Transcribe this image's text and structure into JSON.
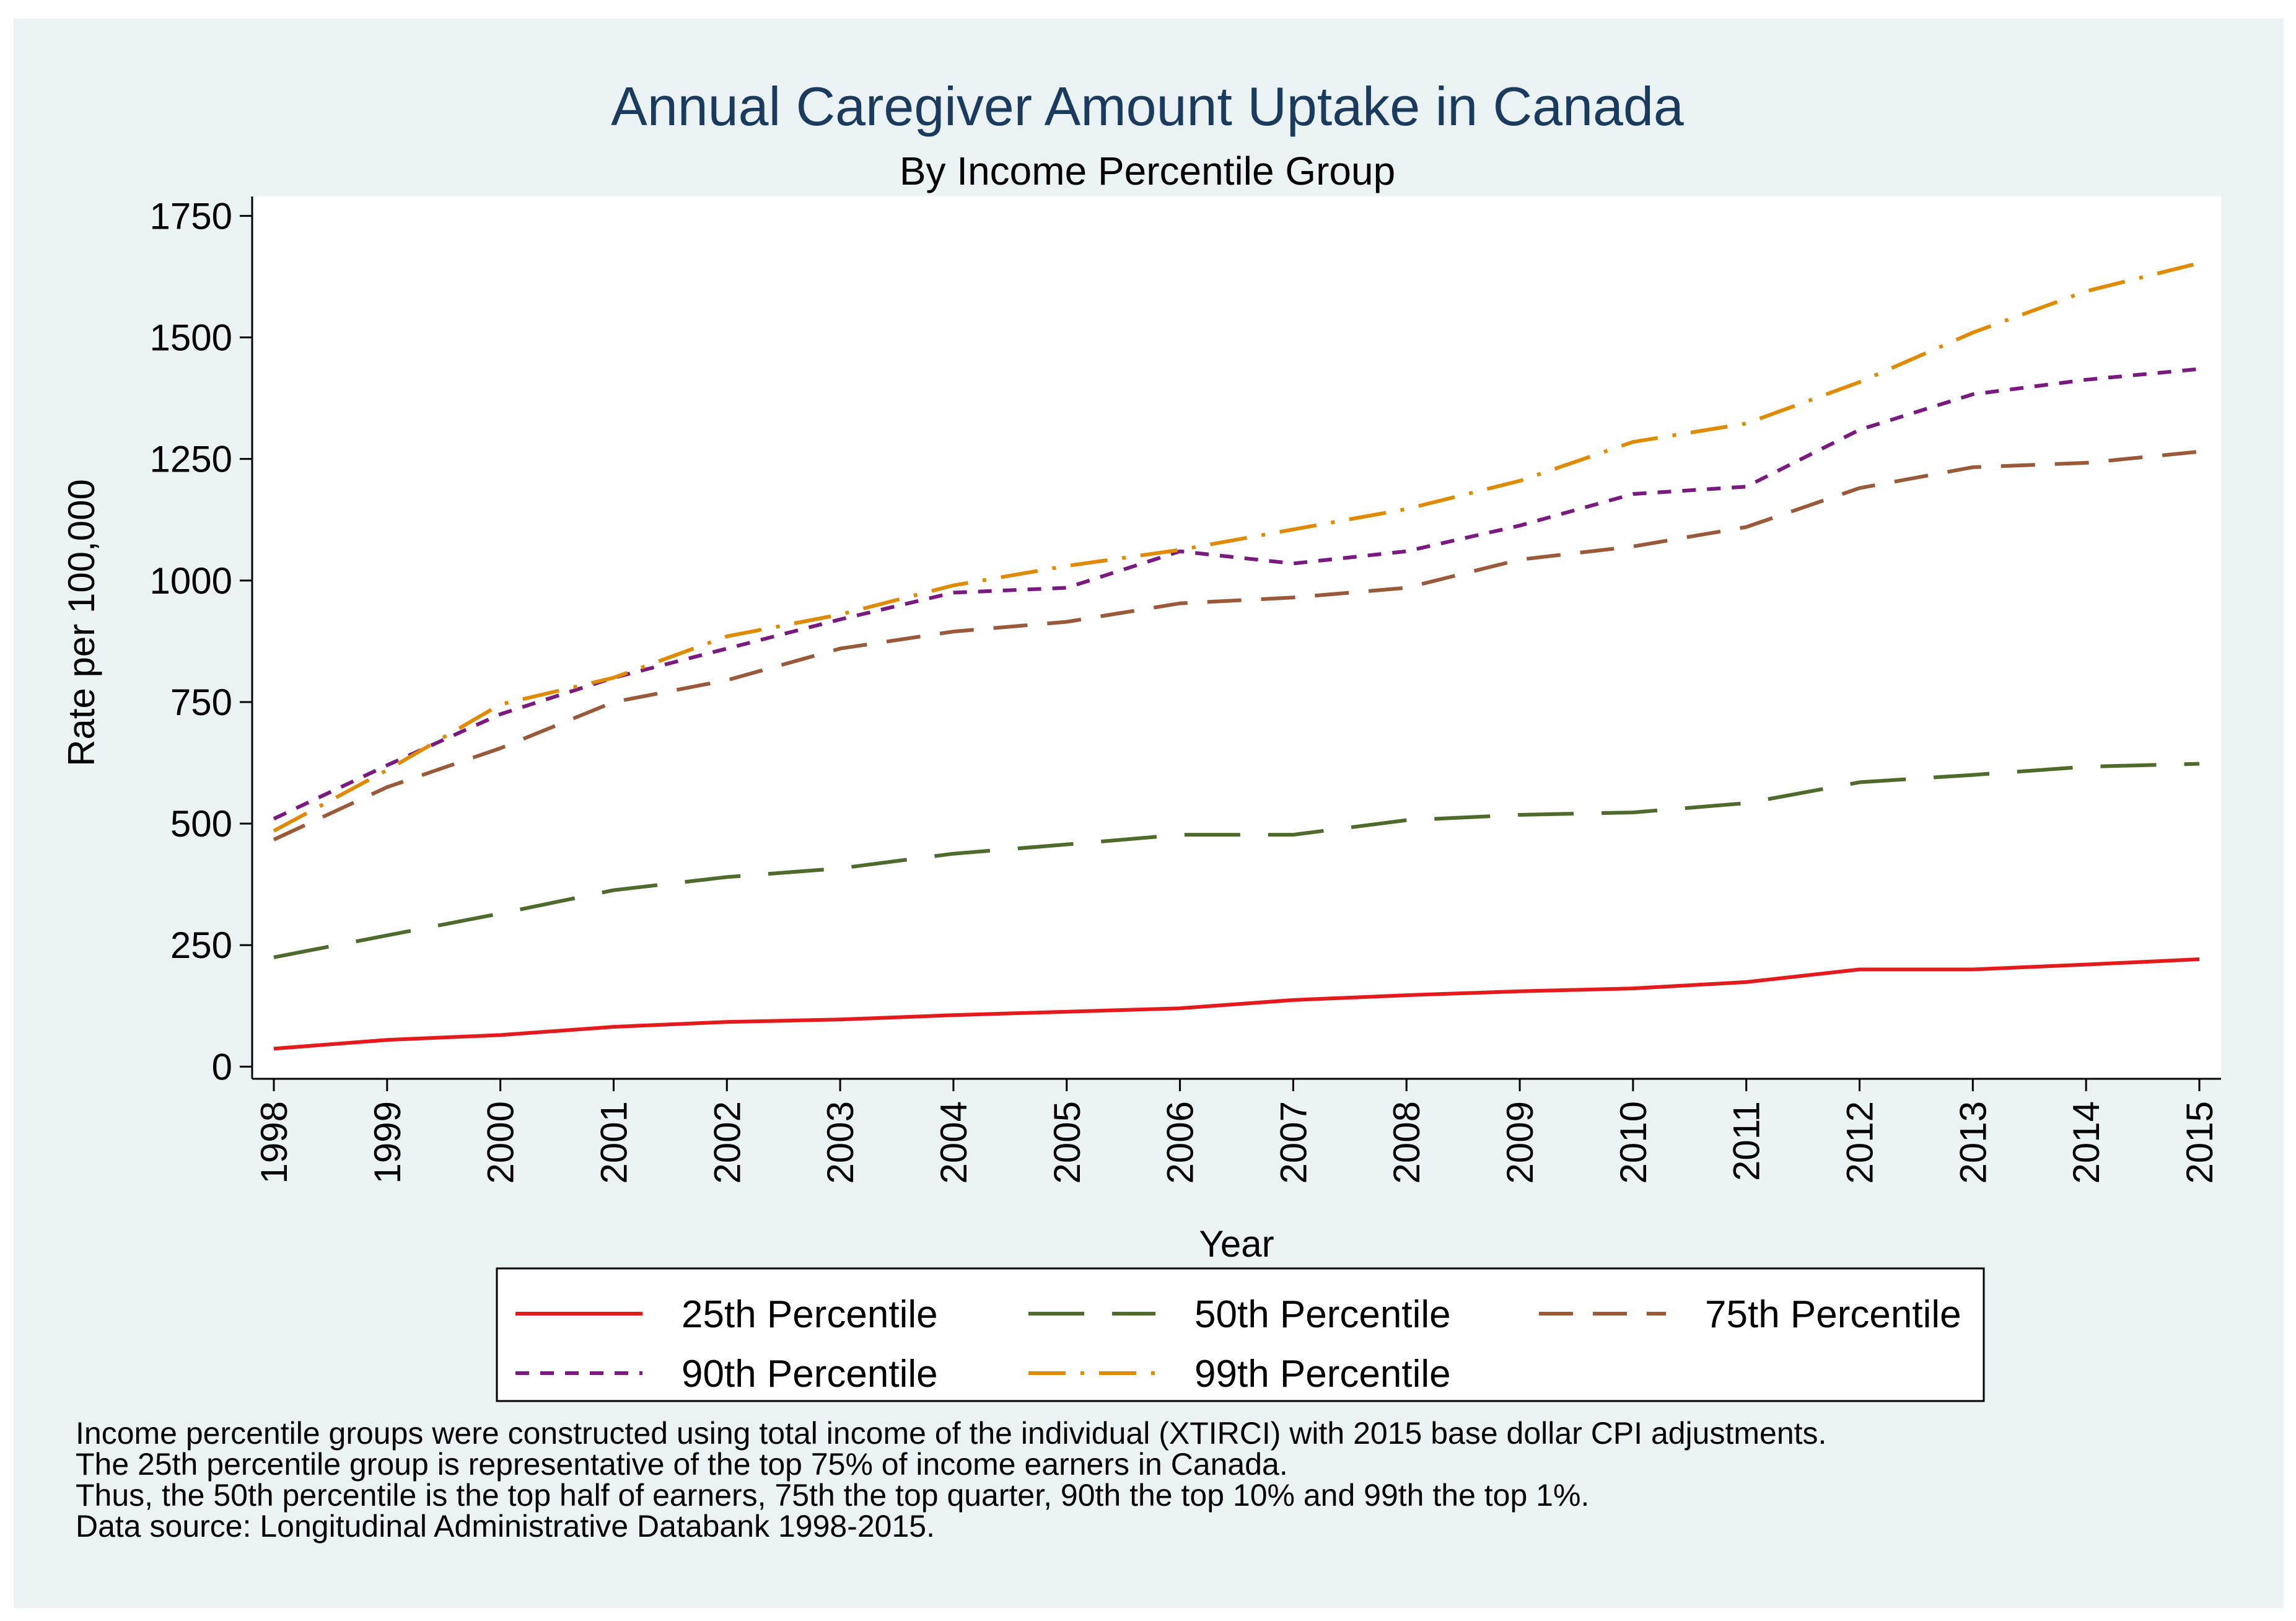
{
  "chart_data": {
    "type": "line",
    "title": "Annual Caregiver Amount Uptake in Canada",
    "subtitle": "By Income Percentile Group",
    "xlabel": "Year",
    "ylabel": "Rate per 100,000",
    "x": [
      "1998",
      "1999",
      "2000",
      "2001",
      "2002",
      "2003",
      "2004",
      "2005",
      "2006",
      "2007",
      "2008",
      "2009",
      "2010",
      "2011",
      "2012",
      "2013",
      "2014",
      "2015"
    ],
    "yticks": [
      0,
      250,
      500,
      750,
      1000,
      1250,
      1500,
      1750
    ],
    "ylim": [
      -25,
      1790
    ],
    "grid": false,
    "legend_position": "bottom",
    "series": [
      {
        "name": "25th Percentile",
        "color": "#e41a1c",
        "dash": "solid",
        "values": [
          37,
          55,
          65,
          82,
          92,
          97,
          106,
          113,
          120,
          137,
          147,
          155,
          161,
          174,
          200,
          200,
          210,
          221
        ]
      },
      {
        "name": "50th Percentile",
        "color": "#4e6b2c",
        "dash": "longdash",
        "values": [
          225,
          270,
          315,
          363,
          390,
          408,
          438,
          457,
          477,
          477,
          507,
          518,
          523,
          542,
          585,
          600,
          617,
          623
        ]
      },
      {
        "name": "75th Percentile",
        "color": "#9a5a3a",
        "dash": "dash",
        "values": [
          467,
          575,
          655,
          750,
          795,
          860,
          895,
          915,
          953,
          965,
          985,
          1043,
          1070,
          1110,
          1190,
          1233,
          1242,
          1265
        ]
      },
      {
        "name": "90th Percentile",
        "color": "#7a1a80",
        "dash": "shortdash",
        "values": [
          510,
          620,
          725,
          800,
          860,
          920,
          975,
          985,
          1060,
          1035,
          1060,
          1113,
          1178,
          1193,
          1310,
          1383,
          1413,
          1435
        ]
      },
      {
        "name": "99th Percentile",
        "color": "#e08a00",
        "dash": "dashdot",
        "values": [
          485,
          610,
          745,
          800,
          885,
          930,
          990,
          1030,
          1063,
          1105,
          1147,
          1205,
          1285,
          1323,
          1408,
          1510,
          1595,
          1653
        ]
      }
    ]
  },
  "notes": [
    "Income percentile groups were constructed using total income of the individual (XTIRCI) with 2015 base dollar CPI adjustments.",
    "The 25th percentile group is representative of the top 75% of income earners in Canada.",
    "Thus, the 50th percentile is the top half of earners, 75th the top quarter, 90th the top 10% and 99th the top 1%.",
    "Data source: Longitudinal Administrative Databank 1998-2015."
  ]
}
